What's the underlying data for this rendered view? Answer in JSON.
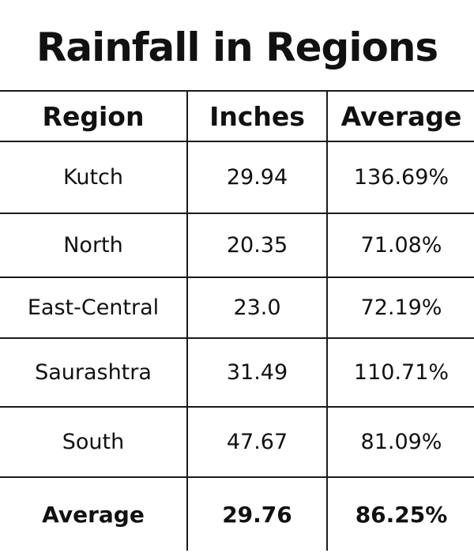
{
  "chart_data": {
    "type": "table",
    "title": "Rainfall in Regions",
    "columns": [
      "Region",
      "Inches",
      "Average"
    ],
    "rows": [
      [
        "Kutch",
        "29.94",
        "136.69%"
      ],
      [
        "North",
        "20.35",
        "71.08%"
      ],
      [
        "East-Central",
        "23.0",
        "72.19%"
      ],
      [
        "Saurashtra",
        "31.49",
        "110.71%"
      ],
      [
        "South",
        "47.67",
        "81.09%"
      ]
    ],
    "summary_row": [
      "Average",
      "29.76",
      "86.25%"
    ]
  }
}
